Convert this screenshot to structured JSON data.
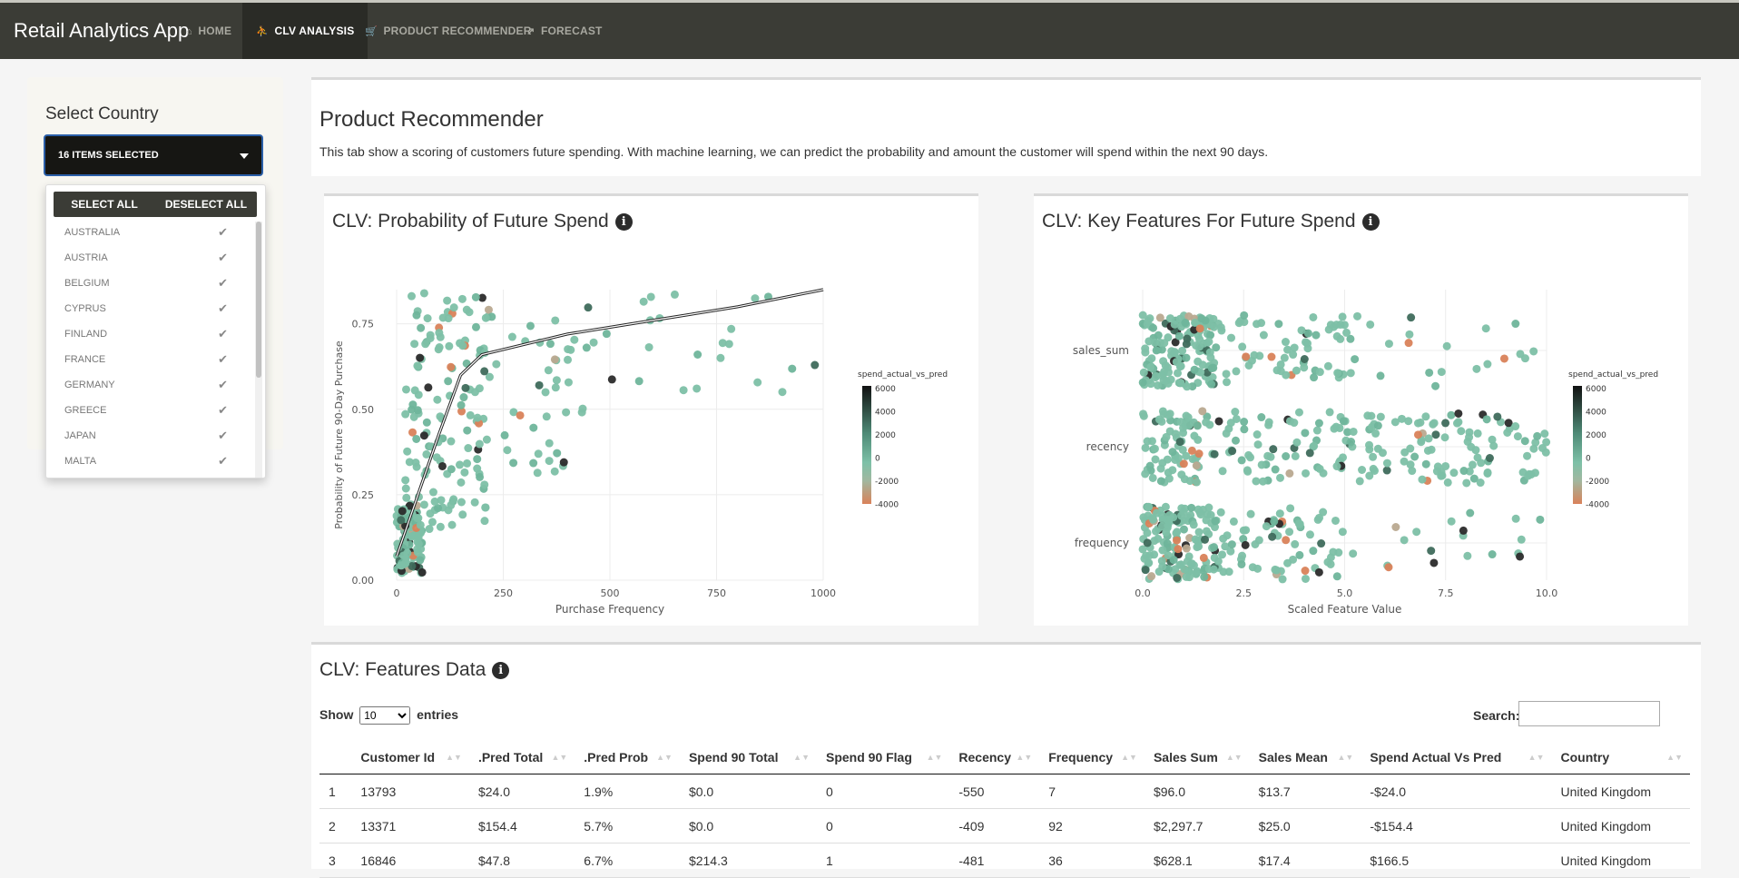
{
  "app": {
    "title": "Retail Analytics App",
    "nav": [
      {
        "icon": "⌂",
        "label": "HOME"
      },
      {
        "icon": "⛹",
        "label": "CLV ANALYSIS"
      },
      {
        "icon": "🛒",
        "label": "PRODUCT RECOMMENDER"
      },
      {
        "icon": "↗",
        "label": "FORECAST"
      }
    ]
  },
  "sidebar": {
    "title": "Select Country",
    "dropdown_value": "16 ITEMS SELECTED",
    "select_all": "SELECT ALL",
    "deselect_all": "DESELECT ALL",
    "options": [
      "AUSTRALIA",
      "AUSTRIA",
      "BELGIUM",
      "CYPRUS",
      "FINLAND",
      "FRANCE",
      "GERMANY",
      "GREECE",
      "JAPAN",
      "MALTA"
    ]
  },
  "header": {
    "title": "Product Recommender",
    "description": "This tab show a scoring of customers future spending. With machine learning, we can predict the probability and amount the customer will spend within the next 90 days."
  },
  "chart1": {
    "title": "CLV: Probability of Future Spend",
    "legend_title": "spend_actual_vs_pred",
    "legend_ticks": [
      "6000",
      "4000",
      "2000",
      "0",
      "-2000",
      "-4000"
    ]
  },
  "chart2": {
    "title": "CLV: Key Features For Future Spend",
    "legend_title": "spend_actual_vs_pred",
    "legend_ticks": [
      "6000",
      "4000",
      "2000",
      "0",
      "-2000",
      "-4000"
    ]
  },
  "chart_data": [
    {
      "type": "scatter",
      "title": "CLV: Probability of Future Spend",
      "xlabel": "Purchase Frequency",
      "ylabel": "Probability of Future 90-Day Purchase",
      "xlim": [
        0,
        1000
      ],
      "ylim": [
        0,
        0.85
      ],
      "xticks": [
        "0",
        "250",
        "500",
        "750",
        "1000"
      ],
      "yticks": [
        "0.00",
        "0.25",
        "0.50",
        "0.75"
      ],
      "colorbar": {
        "name": "spend_actual_vs_pred",
        "range": [
          -4000,
          6000
        ]
      },
      "trend": [
        [
          0,
          0.07
        ],
        [
          50,
          0.25
        ],
        [
          100,
          0.43
        ],
        [
          150,
          0.6
        ],
        [
          200,
          0.66
        ],
        [
          400,
          0.72
        ],
        [
          600,
          0.76
        ],
        [
          800,
          0.8
        ],
        [
          1000,
          0.85
        ]
      ]
    },
    {
      "type": "scatter",
      "title": "CLV: Key Features For Future Spend",
      "xlabel": "Scaled Feature Value",
      "ylabel": "",
      "xlim": [
        0,
        10
      ],
      "categories": [
        "sales_sum",
        "recency",
        "frequency"
      ],
      "xticks": [
        "0.0",
        "2.5",
        "5.0",
        "7.5",
        "10.0"
      ],
      "colorbar": {
        "name": "spend_actual_vs_pred",
        "range": [
          -4000,
          6000
        ]
      }
    }
  ],
  "table": {
    "title": "CLV: Features Data",
    "show_label": "Show",
    "entries_label": "entries",
    "page_size": "10",
    "search_label": "Search:",
    "columns": [
      "",
      "Customer Id",
      ".Pred Total",
      ".Pred Prob",
      "Spend 90 Total",
      "Spend 90 Flag",
      "Recency",
      "Frequency",
      "Sales Sum",
      "Sales Mean",
      "Spend Actual Vs Pred",
      "Country"
    ],
    "rows": [
      [
        "1",
        "13793",
        "$24.0",
        "1.9%",
        "$0.0",
        "0",
        "-550",
        "7",
        "$96.0",
        "$13.7",
        "-$24.0",
        "United Kingdom"
      ],
      [
        "2",
        "13371",
        "$154.4",
        "5.7%",
        "$0.0",
        "0",
        "-409",
        "92",
        "$2,297.7",
        "$25.0",
        "-$154.4",
        "United Kingdom"
      ],
      [
        "3",
        "16846",
        "$47.8",
        "6.7%",
        "$214.3",
        "1",
        "-481",
        "36",
        "$628.1",
        "$17.4",
        "$166.5",
        "United Kingdom"
      ]
    ]
  },
  "colors": {
    "navbar": "#3b3c36",
    "accent_point": "#7dbfa6",
    "positive": "#1a1a1a",
    "negative": "#d9825a"
  }
}
